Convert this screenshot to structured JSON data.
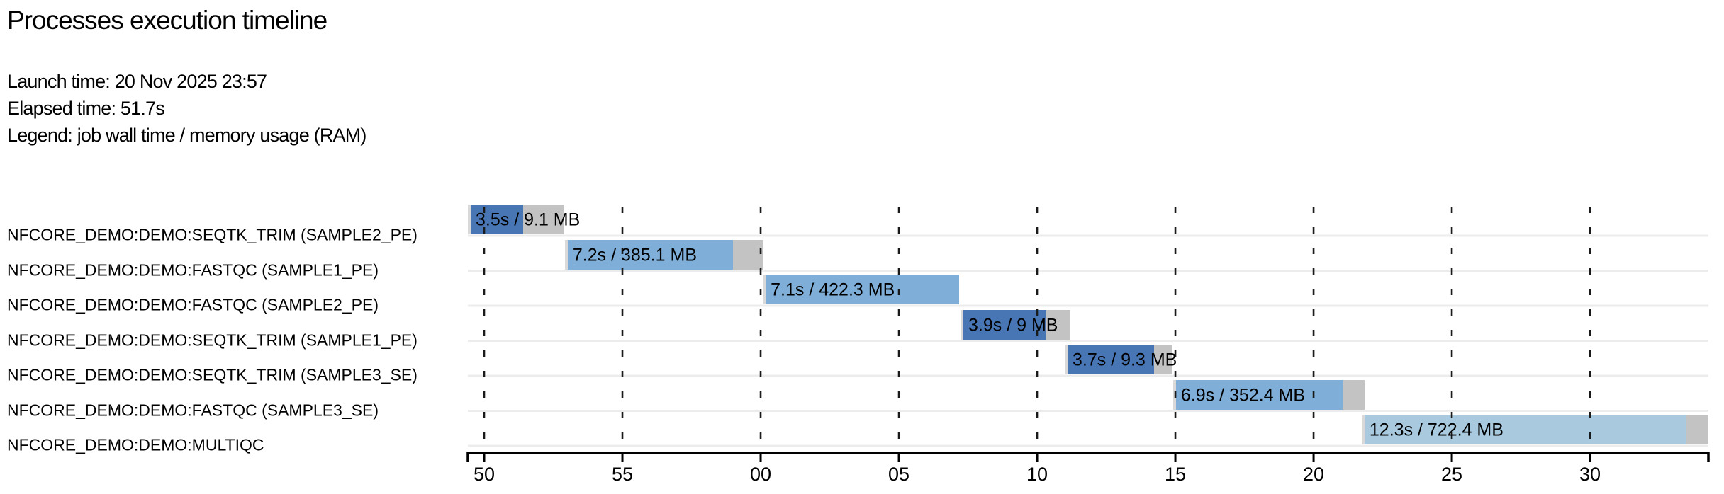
{
  "header": {
    "title": "Processes execution timeline",
    "launch_line": "Launch time: 20 Nov 2025 23:57",
    "elapsed_line": "Elapsed time: 51.7s",
    "legend_line": "Legend: job wall time / memory usage (RAM)"
  },
  "colors": {
    "seqtk_trim": "#4876b4",
    "fastqc": "#7fafd8",
    "multiqc": "#a9cade",
    "tail_gray": "#c3c3c3",
    "submit_gray": "#d9d9d9",
    "separator": "#ececec",
    "gridline": "#1a1a1a",
    "axis": "#000000"
  },
  "chart_data": {
    "type": "bar",
    "variant": "horizontal-gantt-timeline",
    "title": "Processes execution timeline",
    "launch_time": "20 Nov 2025 23:57",
    "elapsed_time_s": 51.7,
    "legend": "job wall time / memory usage (RAM)",
    "grid": "dashed-vertical",
    "x_axis": {
      "unit": "seconds (mm:ss wrap over 23:57 → 23:58)",
      "domain_s": [
        49.41,
        94.28
      ],
      "ticks": [
        {
          "value": 50,
          "label": "50"
        },
        {
          "value": 55,
          "label": "55"
        },
        {
          "value": 60,
          "label": "00"
        },
        {
          "value": 65,
          "label": "05"
        },
        {
          "value": 70,
          "label": "10"
        },
        {
          "value": 75,
          "label": "15"
        },
        {
          "value": 80,
          "label": "20"
        },
        {
          "value": 85,
          "label": "25"
        },
        {
          "value": 90,
          "label": "30"
        }
      ]
    },
    "tasks": [
      {
        "process": "NFCORE_DEMO:DEMO:SEQTK_TRIM (SAMPLE2_PE)",
        "bar_label": "3.5s / 9.1 MB",
        "wall_time": "3.5s",
        "memory": "9.1 MB",
        "start_s": 49.41,
        "run_end_s": 51.41,
        "end_s": 52.9,
        "color_key": "seqtk_trim"
      },
      {
        "process": "NFCORE_DEMO:DEMO:FASTQC (SAMPLE1_PE)",
        "bar_label": "7.2s / 385.1 MB",
        "wall_time": "7.2s",
        "memory": "385.1 MB",
        "start_s": 52.92,
        "run_end_s": 59.0,
        "end_s": 60.1,
        "color_key": "fastqc"
      },
      {
        "process": "NFCORE_DEMO:DEMO:FASTQC (SAMPLE2_PE)",
        "bar_label": "7.1s / 422.3 MB",
        "wall_time": "7.1s",
        "memory": "422.3 MB",
        "start_s": 60.08,
        "run_end_s": 67.18,
        "end_s": 67.18,
        "color_key": "fastqc"
      },
      {
        "process": "NFCORE_DEMO:DEMO:SEQTK_TRIM (SAMPLE1_PE)",
        "bar_label": "3.9s / 9 MB",
        "wall_time": "3.9s",
        "memory": "9 MB",
        "start_s": 67.23,
        "run_end_s": 70.33,
        "end_s": 71.21,
        "color_key": "seqtk_trim"
      },
      {
        "process": "NFCORE_DEMO:DEMO:SEQTK_TRIM (SAMPLE3_SE)",
        "bar_label": "3.7s / 9.3 MB",
        "wall_time": "3.7s",
        "memory": "9.3 MB",
        "start_s": 71.0,
        "run_end_s": 74.23,
        "end_s": 74.9,
        "color_key": "seqtk_trim"
      },
      {
        "process": "NFCORE_DEMO:DEMO:FASTQC (SAMPLE3_SE)",
        "bar_label": "6.9s / 352.4 MB",
        "wall_time": "6.9s",
        "memory": "352.4 MB",
        "start_s": 74.92,
        "run_end_s": 81.05,
        "end_s": 81.85,
        "color_key": "fastqc"
      },
      {
        "process": "NFCORE_DEMO:DEMO:MULTIQC",
        "bar_label": "12.3s / 722.4 MB",
        "wall_time": "12.3s",
        "memory": "722.4 MB",
        "start_s": 81.74,
        "run_end_s": 93.46,
        "end_s": 94.28,
        "color_key": "multiqc"
      }
    ]
  }
}
